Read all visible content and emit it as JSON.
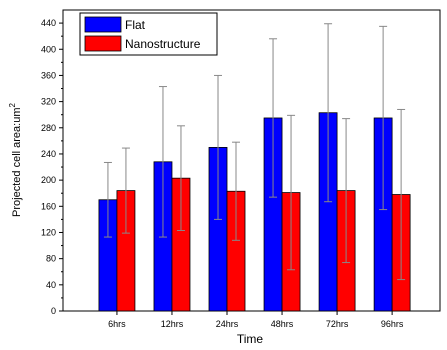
{
  "chart_data": {
    "type": "bar",
    "title": "",
    "xlabel": "Time",
    "ylabel": "Projected cell area:um",
    "ylabel_superscript": "2",
    "ylim": [
      0,
      460
    ],
    "yticks": [
      0,
      40,
      80,
      120,
      160,
      200,
      240,
      280,
      320,
      360,
      400,
      440
    ],
    "categories": [
      "6hrs",
      "12hrs",
      "24hrs",
      "48hrs",
      "72hrs",
      "96hrs"
    ],
    "legend_position": "top-left",
    "series": [
      {
        "name": "Flat",
        "color": "#0000ff",
        "values": [
          170,
          228,
          250,
          295,
          303,
          295
        ],
        "error": [
          57,
          115,
          110,
          121,
          136,
          140
        ]
      },
      {
        "name": "Nanostructure",
        "color": "#ff0000",
        "values": [
          184,
          203,
          183,
          181,
          184,
          178
        ],
        "error": [
          65,
          80,
          75,
          118,
          110,
          130
        ]
      }
    ]
  }
}
